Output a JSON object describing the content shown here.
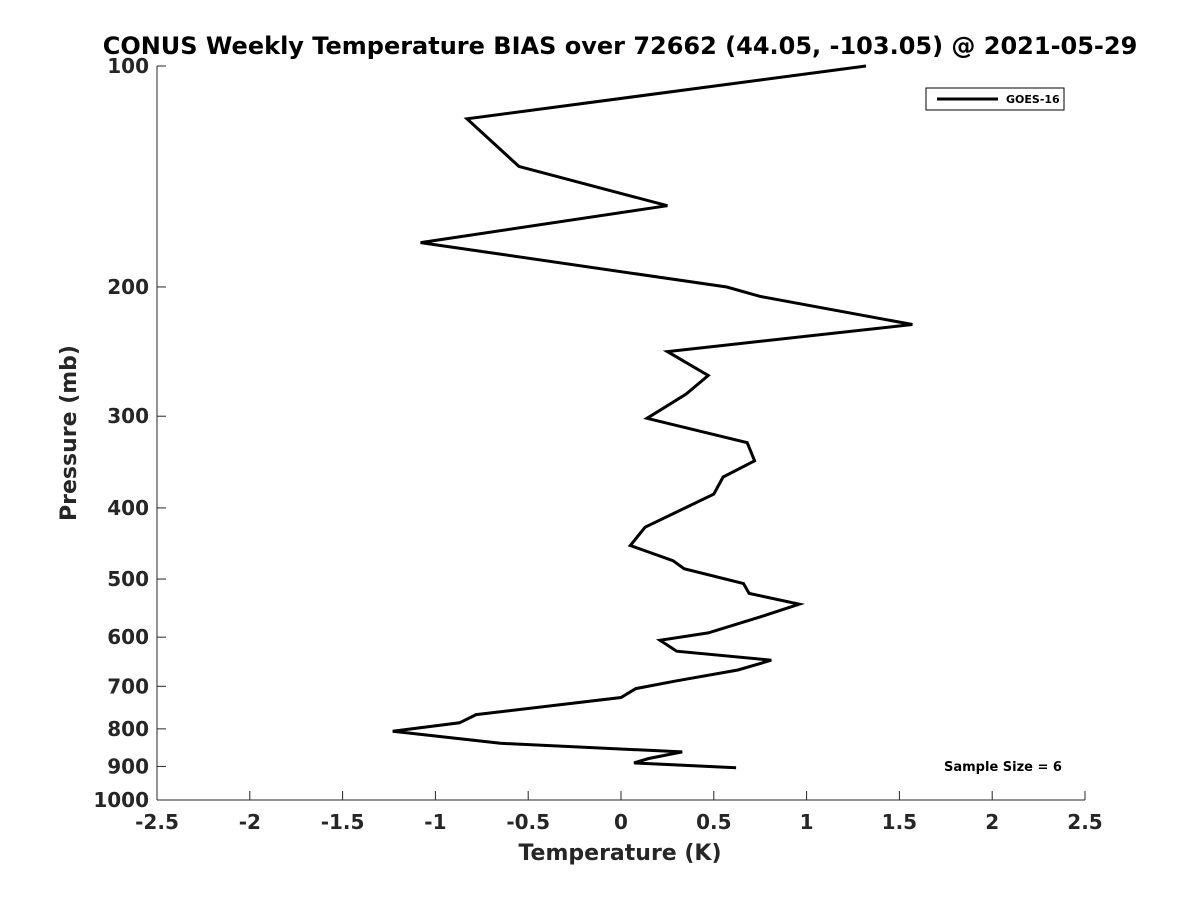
{
  "chart_data": {
    "type": "line",
    "title": "CONUS Weekly Temperature BIAS over 72662 (44.05, -103.05) @ 2021-05-29",
    "xlabel": "Temperature (K)",
    "ylabel": "Pressure (mb)",
    "xlim": [
      -2.5,
      2.5
    ],
    "ylim": [
      100,
      1000
    ],
    "y_scale": "log",
    "y_reversed": true,
    "x_ticks": [
      -2.5,
      -2,
      -1.5,
      -1,
      -0.5,
      0,
      0.5,
      1,
      1.5,
      2,
      2.5
    ],
    "x_tick_labels": [
      "-2.5",
      "-2",
      "-1.5",
      "-1",
      "-0.5",
      "0",
      "0.5",
      "1",
      "1.5",
      "2",
      "2.5"
    ],
    "y_ticks": [
      100,
      200,
      300,
      400,
      500,
      600,
      700,
      800,
      900,
      1000
    ],
    "y_tick_labels": [
      "100",
      "200",
      "300",
      "400",
      "500",
      "600",
      "700",
      "800",
      "900",
      "1000"
    ],
    "grid": false,
    "legend_position": "top-right",
    "series": [
      {
        "name": "GOES-16",
        "color": "#000000",
        "points": [
          {
            "x": 1.32,
            "y": 100
          },
          {
            "x": -0.83,
            "y": 118
          },
          {
            "x": -0.55,
            "y": 137
          },
          {
            "x": 0.25,
            "y": 155
          },
          {
            "x": -1.08,
            "y": 174
          },
          {
            "x": 0.57,
            "y": 200
          },
          {
            "x": 0.75,
            "y": 206
          },
          {
            "x": 1.57,
            "y": 225
          },
          {
            "x": 0.25,
            "y": 245
          },
          {
            "x": 0.47,
            "y": 264
          },
          {
            "x": 0.35,
            "y": 280
          },
          {
            "x": 0.14,
            "y": 302
          },
          {
            "x": 0.68,
            "y": 326
          },
          {
            "x": 0.72,
            "y": 345
          },
          {
            "x": 0.55,
            "y": 363
          },
          {
            "x": 0.5,
            "y": 383
          },
          {
            "x": 0.13,
            "y": 425
          },
          {
            "x": 0.05,
            "y": 450
          },
          {
            "x": 0.28,
            "y": 472
          },
          {
            "x": 0.34,
            "y": 484
          },
          {
            "x": 0.66,
            "y": 507
          },
          {
            "x": 0.69,
            "y": 523
          },
          {
            "x": 0.96,
            "y": 541
          },
          {
            "x": 0.76,
            "y": 562
          },
          {
            "x": 0.47,
            "y": 592
          },
          {
            "x": 0.21,
            "y": 606
          },
          {
            "x": 0.3,
            "y": 627
          },
          {
            "x": 0.81,
            "y": 645
          },
          {
            "x": 0.63,
            "y": 665
          },
          {
            "x": 0.3,
            "y": 688
          },
          {
            "x": 0.08,
            "y": 705
          },
          {
            "x": 0.0,
            "y": 725
          },
          {
            "x": -0.78,
            "y": 765
          },
          {
            "x": -0.87,
            "y": 785
          },
          {
            "x": -1.23,
            "y": 806
          },
          {
            "x": -0.65,
            "y": 837
          },
          {
            "x": 0.33,
            "y": 860
          },
          {
            "x": 0.15,
            "y": 878
          },
          {
            "x": 0.07,
            "y": 890
          },
          {
            "x": 0.62,
            "y": 904
          }
        ]
      }
    ],
    "annotations": [
      "Sample Size = 6"
    ]
  }
}
